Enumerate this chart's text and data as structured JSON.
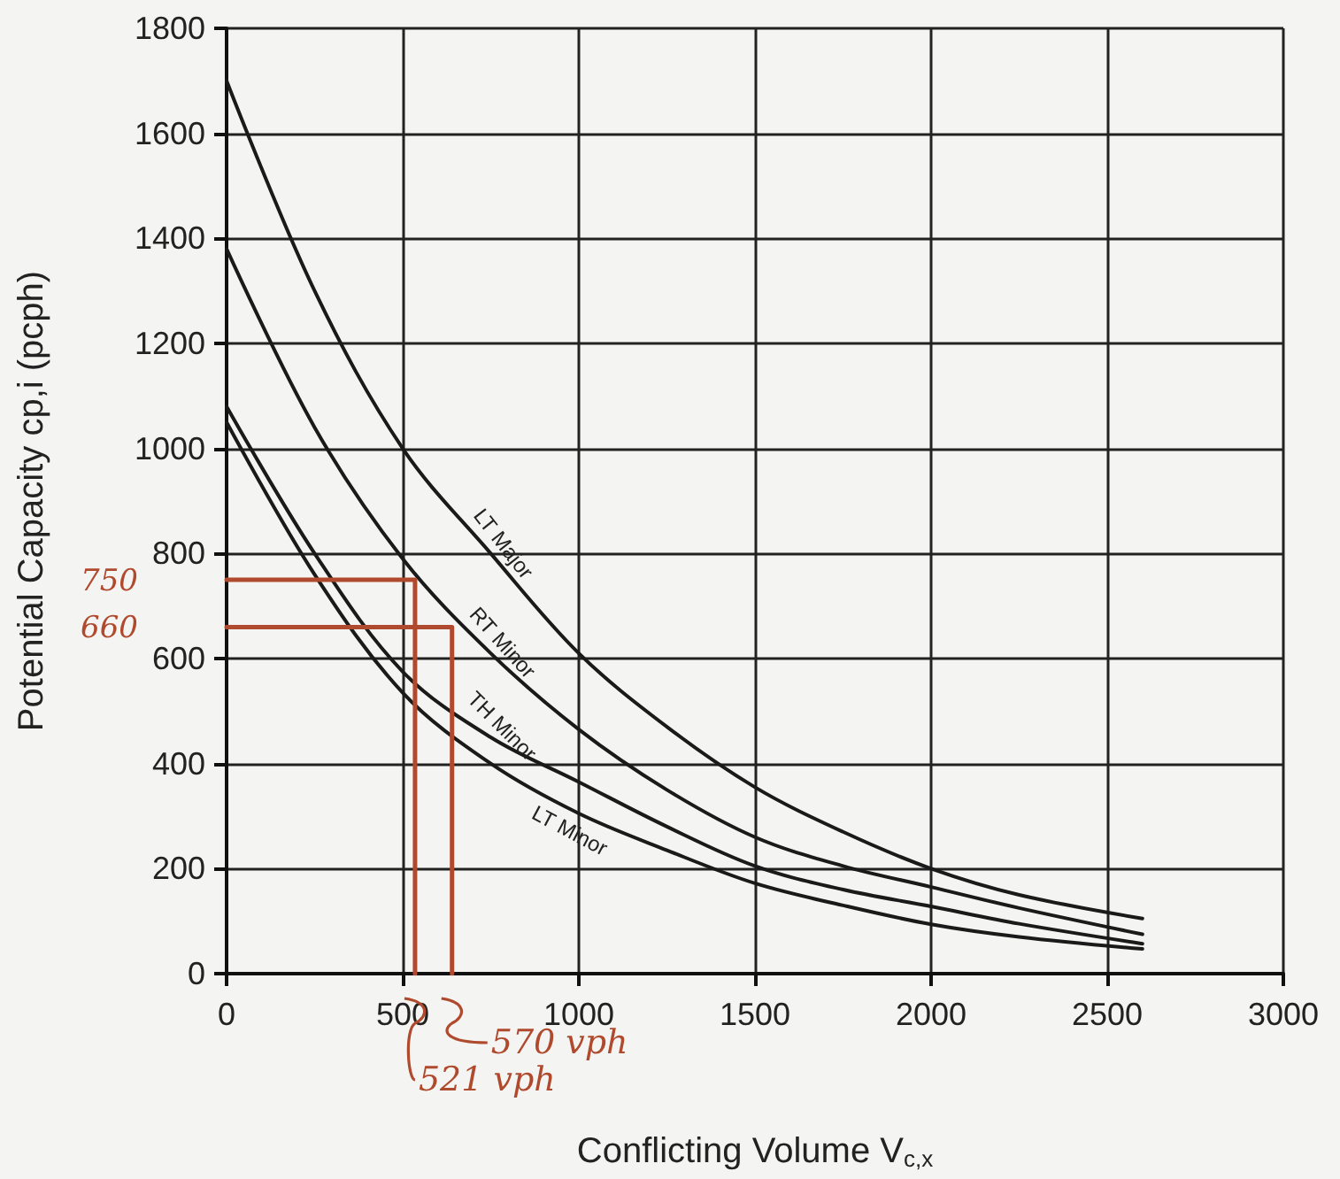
{
  "chart_data": {
    "type": "line",
    "xlabel": "Conflicting Volume V$_{c,x}$",
    "ylabel": "Potential Capacity cp,i (pcph)",
    "x": [
      0,
      250,
      500,
      750,
      1000,
      1250,
      1500,
      1750,
      2000,
      2250,
      2600
    ],
    "series": [
      {
        "name": "LT Major",
        "color": "#1a1a1a",
        "values": [
          1700,
          1300,
          1000,
          800,
          610,
          470,
          355,
          270,
          200,
          150,
          105
        ]
      },
      {
        "name": "RT Minor",
        "color": "#1a1a1a",
        "values": [
          1380,
          1040,
          790,
          610,
          465,
          350,
          260,
          205,
          165,
          125,
          75
        ]
      },
      {
        "name": "TH Minor",
        "color": "#1a1a1a",
        "values": [
          1080,
          800,
          575,
          450,
          365,
          280,
          205,
          160,
          128,
          95,
          57
        ]
      },
      {
        "name": "LT Minor",
        "color": "#1a1a1a",
        "values": [
          1050,
          760,
          535,
          400,
          305,
          235,
          172,
          130,
          94,
          70,
          47
        ]
      },
      {
        "color": "#b04a2e",
        "x": [
          0,
          535,
          535
        ],
        "values": [
          750,
          750,
          0
        ]
      },
      {
        "color": "#b04a2e",
        "x": [
          0,
          640,
          640
        ],
        "values": [
          660,
          660,
          0
        ]
      }
    ],
    "annotations": [
      {
        "text": "750",
        "x": 0,
        "y": 750
      },
      {
        "text": "660",
        "x": 0,
        "y": 660
      },
      {
        "text": "570 vph",
        "x": 640,
        "y": 0
      },
      {
        "text": "521 vph",
        "x": 535,
        "y": 0
      }
    ],
    "xlim": [
      0,
      3000
    ],
    "xticks": [
      0,
      500,
      1000,
      1500,
      2000,
      2500,
      3000
    ],
    "ylim": [
      0,
      1800
    ],
    "yticks": [
      0,
      200,
      400,
      600,
      800,
      1000,
      1200,
      1400,
      1600,
      1800
    ],
    "grid": true,
    "legend": false,
    "marker": "none",
    "line_style": "solid"
  }
}
